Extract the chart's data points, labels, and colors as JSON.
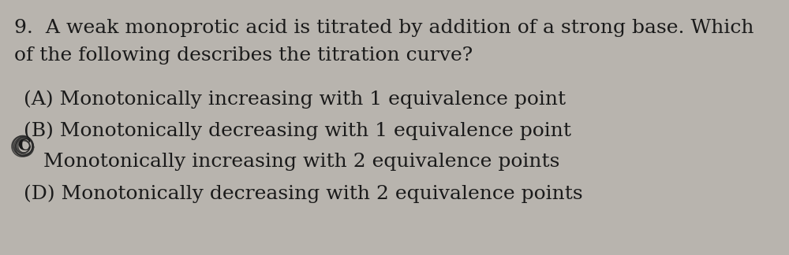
{
  "background_color": "#b8b4ae",
  "text_color": "#1a1a1a",
  "question_line1": "9.  A weak monoprotic acid is titrated by addition of a strong base. Which",
  "question_line2": "of the following describes the titration curve?",
  "option_A": "(A) Monotonically increasing with 1 equivalence point",
  "option_B": "(B) Monotonically decreasing with 1 equivalence point",
  "option_C": "Monotonically increasing with 2 equivalence points",
  "option_D": "(D) Monotonically decreasing with 2 equivalence points",
  "question_fontsize": 18,
  "option_fontsize": 18,
  "marked_index": 2
}
